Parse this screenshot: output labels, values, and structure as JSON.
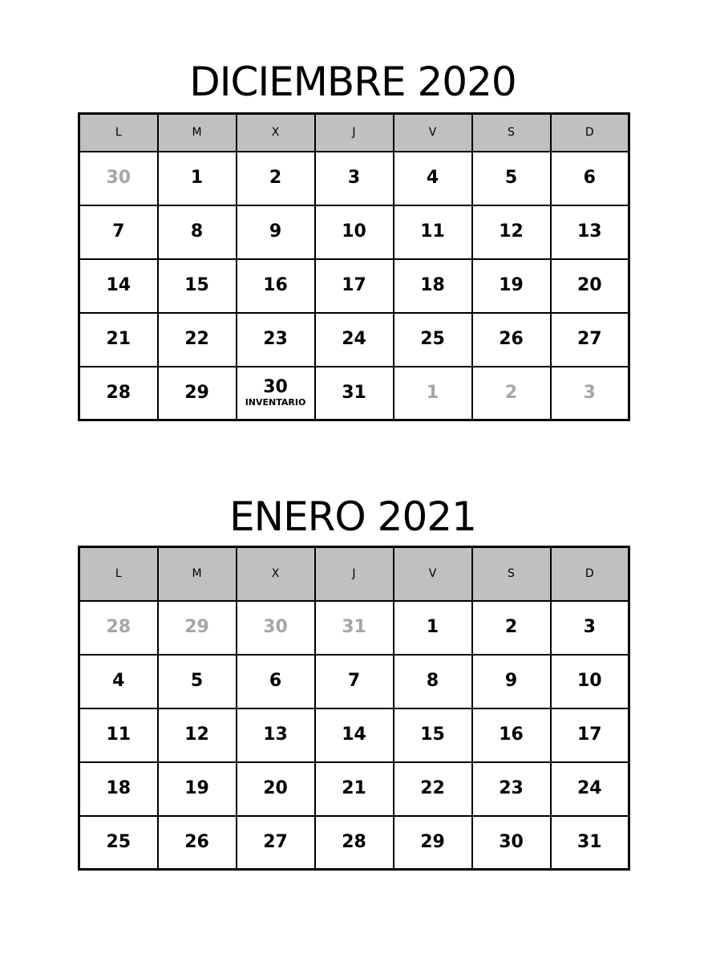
{
  "colors": {
    "highlight": "#ff3b00",
    "header_bg": "#c0c0c0",
    "muted_day": "#a6a6a6",
    "border": "#000000",
    "page_bg": "#ffffff"
  },
  "weekday_headers": [
    "L",
    "M",
    "X",
    "J",
    "V",
    "S",
    "D"
  ],
  "calendars": [
    {
      "title": "DICIEMBRE 2020",
      "weeks": [
        [
          {
            "day": "30",
            "muted": true
          },
          {
            "day": "1"
          },
          {
            "day": "2"
          },
          {
            "day": "3"
          },
          {
            "day": "4"
          },
          {
            "day": "5",
            "highlight": true
          },
          {
            "day": "6",
            "highlight": true
          }
        ],
        [
          {
            "day": "7",
            "highlight": true
          },
          {
            "day": "8",
            "highlight": true
          },
          {
            "day": "9"
          },
          {
            "day": "10"
          },
          {
            "day": "11"
          },
          {
            "day": "12",
            "highlight": true
          },
          {
            "day": "13",
            "highlight": true
          }
        ],
        [
          {
            "day": "14"
          },
          {
            "day": "15"
          },
          {
            "day": "16"
          },
          {
            "day": "17"
          },
          {
            "day": "18"
          },
          {
            "day": "19",
            "highlight": true
          },
          {
            "day": "20",
            "highlight": true
          }
        ],
        [
          {
            "day": "21"
          },
          {
            "day": "22"
          },
          {
            "day": "23"
          },
          {
            "day": "24",
            "highlight": true
          },
          {
            "day": "25",
            "highlight": true
          },
          {
            "day": "26",
            "highlight": true
          },
          {
            "day": "27",
            "highlight": true
          }
        ],
        [
          {
            "day": "28"
          },
          {
            "day": "29"
          },
          {
            "day": "30",
            "highlight": true,
            "note": "INVENTARIO"
          },
          {
            "day": "31",
            "highlight": true
          },
          {
            "day": "1",
            "muted": true
          },
          {
            "day": "2",
            "muted": true
          },
          {
            "day": "3",
            "muted": true
          }
        ]
      ]
    },
    {
      "title": "ENERO 2021",
      "weeks": [
        [
          {
            "day": "28",
            "muted": true
          },
          {
            "day": "29",
            "muted": true
          },
          {
            "day": "30",
            "muted": true
          },
          {
            "day": "31",
            "muted": true
          },
          {
            "day": "1",
            "highlight": true
          },
          {
            "day": "2",
            "highlight": true
          },
          {
            "day": "3",
            "highlight": true
          }
        ],
        [
          {
            "day": "4"
          },
          {
            "day": "5"
          },
          {
            "day": "6",
            "highlight": true
          },
          {
            "day": "7"
          },
          {
            "day": "8"
          },
          {
            "day": "9",
            "highlight": true
          },
          {
            "day": "10",
            "highlight": true
          }
        ],
        [
          {
            "day": "11"
          },
          {
            "day": "12"
          },
          {
            "day": "13"
          },
          {
            "day": "14"
          },
          {
            "day": "15"
          },
          {
            "day": "16",
            "highlight": true
          },
          {
            "day": "17",
            "highlight": true
          }
        ],
        [
          {
            "day": "18"
          },
          {
            "day": "19"
          },
          {
            "day": "20"
          },
          {
            "day": "21"
          },
          {
            "day": "22"
          },
          {
            "day": "23",
            "highlight": true
          },
          {
            "day": "24",
            "highlight": true
          }
        ],
        [
          {
            "day": "25"
          },
          {
            "day": "26"
          },
          {
            "day": "27"
          },
          {
            "day": "28"
          },
          {
            "day": "29"
          },
          {
            "day": "30",
            "highlight": true
          },
          {
            "day": "31",
            "highlight": true
          }
        ]
      ]
    }
  ]
}
